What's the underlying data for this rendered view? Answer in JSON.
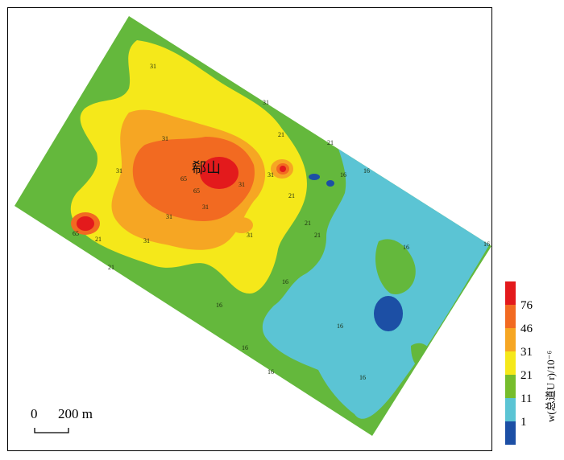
{
  "map": {
    "place_name": "郗山",
    "contour_labels": [
      "31",
      "31",
      "31",
      "31",
      "31",
      "31",
      "31",
      "31",
      "31",
      "31",
      "21",
      "21",
      "21",
      "21",
      "21",
      "21",
      "21",
      "16",
      "16",
      "16",
      "16",
      "16",
      "16",
      "16",
      "16",
      "16",
      "16",
      "65",
      "65",
      "65"
    ]
  },
  "scale_bar": {
    "zero_label": "0",
    "distance_label": "200 m"
  },
  "legend": {
    "title": "w(总道U r)/10⁻⁶",
    "ticks": [
      "76",
      "46",
      "31",
      "21",
      "11",
      "1"
    ],
    "colors": [
      "#e31a1c",
      "#f26a21",
      "#f6a623",
      "#f5e81a",
      "#76bd2c",
      "#5bc4d4",
      "#1c4fa5"
    ]
  }
}
